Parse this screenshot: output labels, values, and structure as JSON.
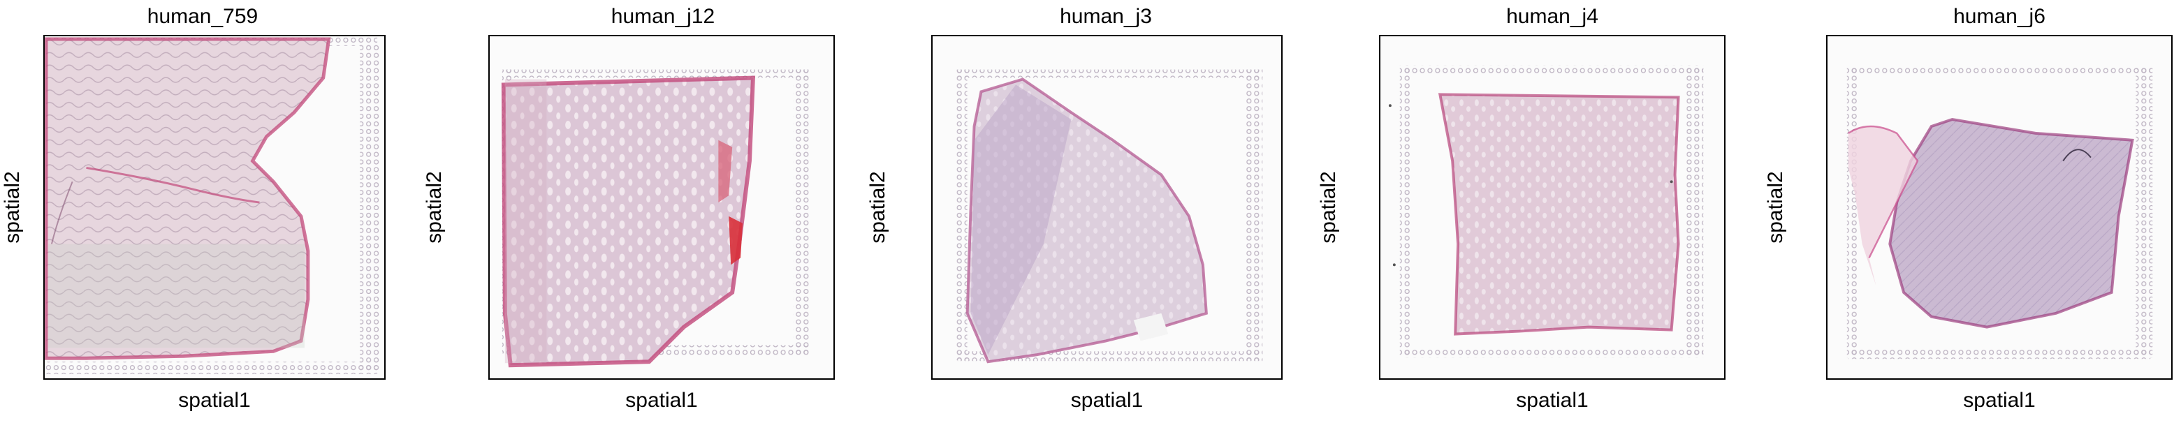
{
  "panels": [
    {
      "title": "human_759",
      "xlabel": "spatial1",
      "ylabel": "spatial2"
    },
    {
      "title": "human_j12",
      "xlabel": "spatial1",
      "ylabel": "spatial2"
    },
    {
      "title": "human_j3",
      "xlabel": "spatial1",
      "ylabel": "spatial2"
    },
    {
      "title": "human_j4",
      "xlabel": "spatial1",
      "ylabel": "spatial2"
    },
    {
      "title": "human_j6",
      "xlabel": "spatial1",
      "ylabel": "spatial2"
    }
  ],
  "colors": {
    "tissue_pink": "#e7c3d2",
    "tissue_purple": "#c9b4cf",
    "tissue_edge": "#c2487a",
    "blood_red": "#d8303a",
    "spot_grey": "#bdb3c2"
  }
}
